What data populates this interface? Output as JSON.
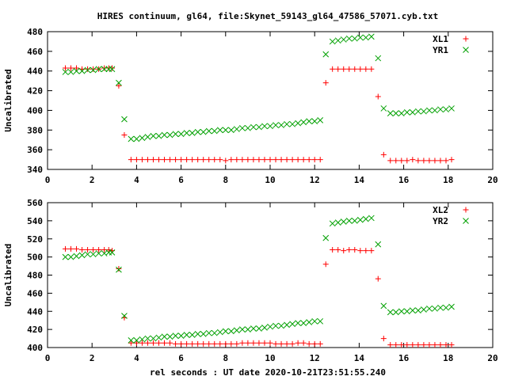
{
  "title": "HIRES continuum, gl64, file:Skynet_59143_gl64_47586_57071.cyb.txt",
  "xlabel": "rel seconds : UT date 2020-10-21T23:51:55.240",
  "chart_data": [
    {
      "type": "scatter",
      "ylabel": "Uncalibrated",
      "xlim": [
        0,
        20
      ],
      "ylim": [
        340,
        480
      ],
      "xticks": [
        0,
        2,
        4,
        6,
        8,
        10,
        12,
        14,
        16,
        18,
        20
      ],
      "yticks": [
        340,
        360,
        380,
        400,
        420,
        440,
        460,
        480
      ],
      "legend_position": "top-right",
      "grid": false,
      "series": [
        {
          "name": "XL1",
          "color": "#ff0000",
          "marker": "plus",
          "x": [
            0.8,
            1.05,
            1.3,
            1.55,
            1.8,
            2.05,
            2.3,
            2.55,
            2.75,
            2.9,
            3.2,
            3.45,
            3.75,
            4.0,
            4.25,
            4.5,
            4.75,
            5.0,
            5.25,
            5.5,
            5.75,
            6.0,
            6.25,
            6.5,
            6.75,
            7.0,
            7.25,
            7.5,
            7.75,
            8.0,
            8.25,
            8.5,
            8.75,
            9.0,
            9.25,
            9.5,
            9.75,
            10.0,
            10.25,
            10.5,
            10.75,
            11.0,
            11.25,
            11.5,
            11.75,
            12.0,
            12.25,
            12.5,
            12.8,
            13.05,
            13.3,
            13.55,
            13.8,
            14.05,
            14.3,
            14.55,
            14.85,
            15.1,
            15.4,
            15.65,
            15.9,
            16.15,
            16.4,
            16.65,
            16.9,
            17.15,
            17.4,
            17.65,
            17.9,
            18.15
          ],
          "y": [
            443,
            443,
            443,
            442,
            442,
            442,
            442,
            443,
            443,
            443,
            425,
            375,
            350,
            350,
            350,
            350,
            350,
            350,
            350,
            350,
            350,
            350,
            350,
            350,
            350,
            350,
            350,
            350,
            350,
            349,
            350,
            350,
            350,
            350,
            350,
            350,
            350,
            350,
            350,
            350,
            350,
            350,
            350,
            350,
            350,
            350,
            350,
            428,
            442,
            442,
            442,
            442,
            442,
            442,
            442,
            442,
            414,
            355,
            349,
            349,
            349,
            349,
            350,
            349,
            349,
            349,
            349,
            349,
            349,
            350
          ]
        },
        {
          "name": "YR1",
          "color": "#00a000",
          "marker": "cross",
          "x": [
            0.8,
            1.05,
            1.3,
            1.55,
            1.8,
            2.05,
            2.3,
            2.55,
            2.75,
            2.9,
            3.2,
            3.45,
            3.75,
            4.0,
            4.25,
            4.5,
            4.75,
            5.0,
            5.25,
            5.5,
            5.75,
            6.0,
            6.25,
            6.5,
            6.75,
            7.0,
            7.25,
            7.5,
            7.75,
            8.0,
            8.25,
            8.5,
            8.75,
            9.0,
            9.25,
            9.5,
            9.75,
            10.0,
            10.25,
            10.5,
            10.75,
            11.0,
            11.25,
            11.5,
            11.75,
            12.0,
            12.25,
            12.5,
            12.8,
            13.05,
            13.3,
            13.55,
            13.8,
            14.05,
            14.3,
            14.55,
            14.85,
            15.1,
            15.4,
            15.65,
            15.9,
            16.15,
            16.4,
            16.65,
            16.9,
            17.15,
            17.4,
            17.65,
            17.9,
            18.15
          ],
          "y": [
            439,
            439,
            440,
            440,
            441,
            441,
            442,
            442,
            442,
            442,
            428,
            391,
            371,
            371,
            372,
            373,
            374,
            374,
            375,
            375,
            376,
            376,
            377,
            377,
            378,
            378,
            379,
            379,
            380,
            380,
            380,
            381,
            382,
            382,
            383,
            383,
            384,
            384,
            385,
            385,
            386,
            386,
            387,
            388,
            389,
            389,
            390,
            457,
            470,
            471,
            472,
            473,
            473,
            474,
            474,
            475,
            453,
            402,
            397,
            397,
            397,
            398,
            398,
            399,
            399,
            400,
            400,
            401,
            401,
            402
          ]
        }
      ]
    },
    {
      "type": "scatter",
      "ylabel": "Uncalibrated",
      "xlim": [
        0,
        20
      ],
      "ylim": [
        400,
        560
      ],
      "xticks": [
        0,
        2,
        4,
        6,
        8,
        10,
        12,
        14,
        16,
        18,
        20
      ],
      "yticks": [
        400,
        420,
        440,
        460,
        480,
        500,
        520,
        540,
        560
      ],
      "legend_position": "top-right",
      "grid": false,
      "series": [
        {
          "name": "XL2",
          "color": "#ff0000",
          "marker": "plus",
          "x": [
            0.8,
            1.05,
            1.3,
            1.55,
            1.8,
            2.05,
            2.3,
            2.55,
            2.75,
            2.9,
            3.2,
            3.45,
            3.75,
            4.0,
            4.25,
            4.5,
            4.75,
            5.0,
            5.25,
            5.5,
            5.75,
            6.0,
            6.25,
            6.5,
            6.75,
            7.0,
            7.25,
            7.5,
            7.75,
            8.0,
            8.25,
            8.5,
            8.75,
            9.0,
            9.25,
            9.5,
            9.75,
            10.0,
            10.25,
            10.5,
            10.75,
            11.0,
            11.25,
            11.5,
            11.75,
            12.0,
            12.25,
            12.5,
            12.8,
            13.05,
            13.3,
            13.55,
            13.8,
            14.05,
            14.3,
            14.55,
            14.85,
            15.1,
            15.4,
            15.65,
            15.9,
            16.15,
            16.4,
            16.65,
            16.9,
            17.15,
            17.4,
            17.65,
            17.9,
            18.15
          ],
          "y": [
            509,
            509,
            509,
            508,
            508,
            508,
            508,
            508,
            508,
            507,
            487,
            433,
            405,
            405,
            405,
            405,
            405,
            405,
            405,
            405,
            404,
            404,
            404,
            404,
            404,
            404,
            404,
            404,
            404,
            404,
            404,
            404,
            405,
            405,
            405,
            405,
            405,
            405,
            404,
            404,
            404,
            404,
            405,
            405,
            404,
            404,
            404,
            492,
            508,
            508,
            507,
            508,
            508,
            507,
            507,
            507,
            476,
            410,
            403,
            403,
            403,
            403,
            403,
            403,
            403,
            403,
            403,
            403,
            403,
            403
          ]
        },
        {
          "name": "YR2",
          "color": "#00a000",
          "marker": "cross",
          "x": [
            0.8,
            1.05,
            1.3,
            1.55,
            1.8,
            2.05,
            2.3,
            2.55,
            2.75,
            2.9,
            3.2,
            3.45,
            3.75,
            4.0,
            4.25,
            4.5,
            4.75,
            5.0,
            5.25,
            5.5,
            5.75,
            6.0,
            6.25,
            6.5,
            6.75,
            7.0,
            7.25,
            7.5,
            7.75,
            8.0,
            8.25,
            8.5,
            8.75,
            9.0,
            9.25,
            9.5,
            9.75,
            10.0,
            10.25,
            10.5,
            10.75,
            11.0,
            11.25,
            11.5,
            11.75,
            12.0,
            12.25,
            12.5,
            12.8,
            13.05,
            13.3,
            13.55,
            13.8,
            14.05,
            14.3,
            14.55,
            14.85,
            15.1,
            15.4,
            15.65,
            15.9,
            16.15,
            16.4,
            16.65,
            16.9,
            17.15,
            17.4,
            17.65,
            17.9,
            18.15
          ],
          "y": [
            500,
            500,
            501,
            502,
            503,
            503,
            504,
            504,
            505,
            505,
            486,
            435,
            408,
            408,
            409,
            410,
            410,
            411,
            412,
            412,
            413,
            413,
            414,
            414,
            415,
            415,
            416,
            416,
            417,
            418,
            418,
            419,
            420,
            420,
            421,
            421,
            422,
            423,
            424,
            424,
            425,
            426,
            427,
            427,
            428,
            429,
            429,
            521,
            537,
            538,
            539,
            540,
            540,
            541,
            542,
            543,
            514,
            446,
            439,
            439,
            440,
            440,
            441,
            441,
            442,
            443,
            443,
            444,
            444,
            445
          ]
        }
      ]
    }
  ]
}
